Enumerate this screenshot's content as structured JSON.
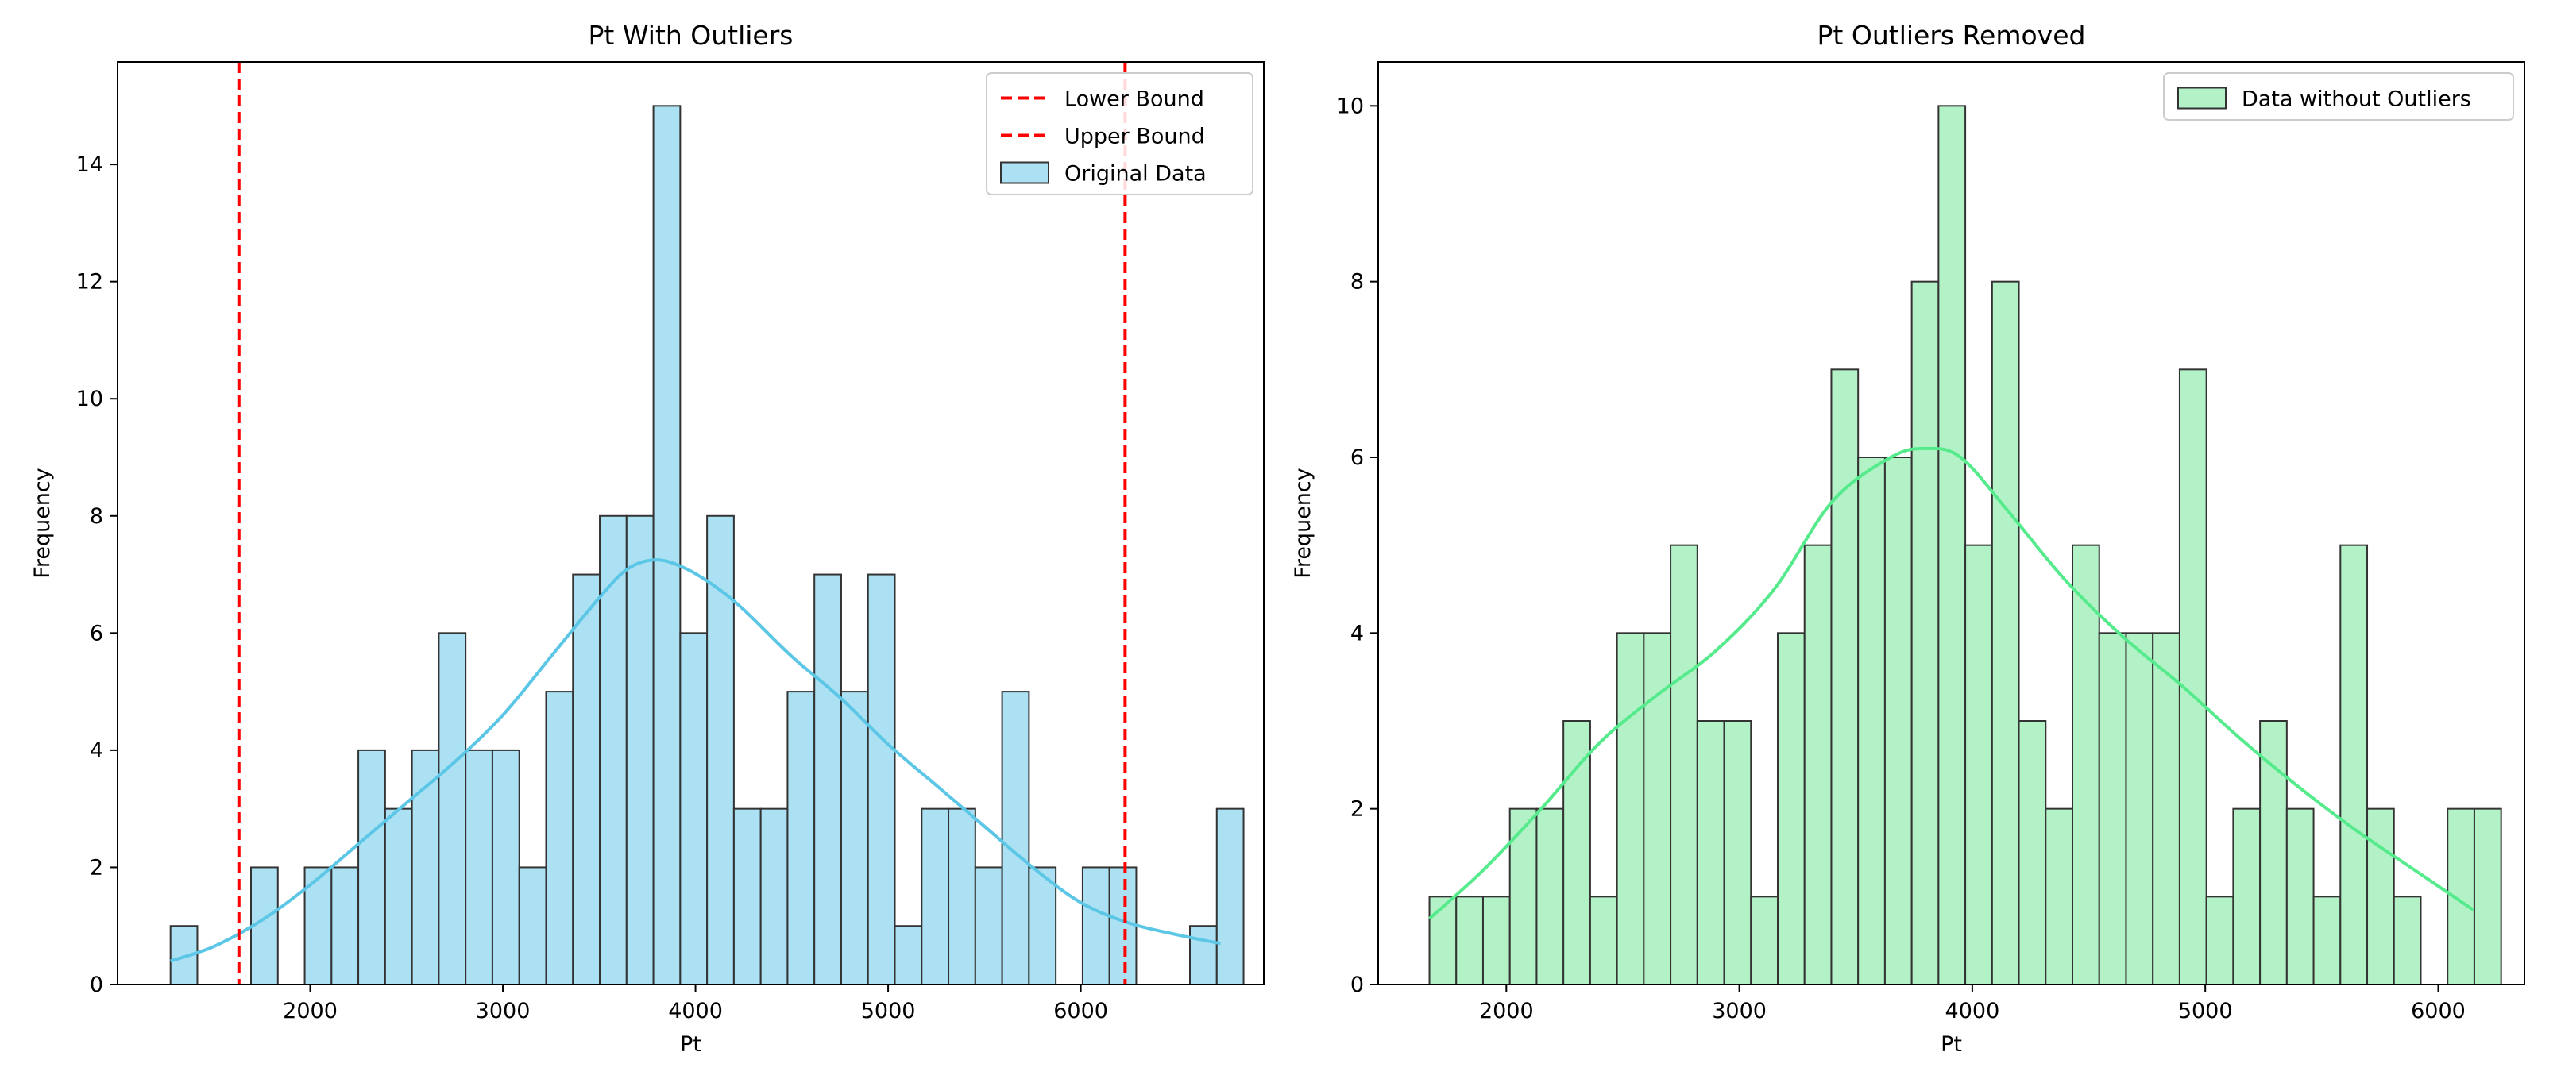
{
  "chart_data": [
    {
      "type": "bar",
      "title": "Pt With Outliers",
      "xlabel": "Pt",
      "ylabel": "Frequency",
      "xlim": [
        1000,
        6950
      ],
      "ylim": [
        0,
        15.75
      ],
      "xticks": [
        2000,
        3000,
        4000,
        5000,
        6000
      ],
      "yticks": [
        0,
        2,
        4,
        6,
        8,
        10,
        12,
        14
      ],
      "bin_start": 1275,
      "bin_width": 139.25,
      "counts": [
        1,
        0,
        0,
        2,
        0,
        2,
        2,
        4,
        3,
        4,
        6,
        4,
        4,
        2,
        5,
        7,
        8,
        8,
        15,
        6,
        8,
        3,
        3,
        5,
        7,
        5,
        7,
        1,
        3,
        3,
        2,
        5,
        2,
        0,
        2,
        2,
        0,
        0,
        1,
        3
      ],
      "bar_fill": "#abe1f2",
      "bar_edge": "#333333",
      "kde": {
        "color": "#5bc6e6",
        "x": [
          1275,
          1500,
          1750,
          2000,
          2250,
          2500,
          2750,
          3000,
          3250,
          3500,
          3650,
          3800,
          3950,
          4100,
          4250,
          4500,
          4750,
          5000,
          5250,
          5500,
          5750,
          6000,
          6250,
          6500,
          6725
        ],
        "y": [
          0.4,
          0.65,
          1.1,
          1.7,
          2.4,
          3.1,
          3.8,
          4.6,
          5.6,
          6.6,
          7.1,
          7.25,
          7.1,
          6.8,
          6.4,
          5.6,
          4.9,
          4.1,
          3.4,
          2.7,
          2.0,
          1.4,
          1.05,
          0.85,
          0.7
        ]
      },
      "vlines": [
        {
          "name": "Lower Bound",
          "x": 1630,
          "color": "#ff0000"
        },
        {
          "name": "Upper Bound",
          "x": 6230,
          "color": "#ff0000"
        }
      ],
      "legend": {
        "position": "top-right",
        "entries": [
          "Lower Bound",
          "Upper Bound",
          "Original Data"
        ]
      }
    },
    {
      "type": "bar",
      "title": "Pt Outliers Removed",
      "xlabel": "Pt",
      "ylabel": "Frequency",
      "xlim": [
        1450,
        6370
      ],
      "ylim": [
        0,
        10.5
      ],
      "xticks": [
        2000,
        3000,
        4000,
        5000,
        6000
      ],
      "yticks": [
        0,
        2,
        4,
        6,
        8,
        10
      ],
      "bin_start": 1670,
      "bin_width": 115,
      "counts": [
        1,
        1,
        1,
        2,
        2,
        3,
        1,
        4,
        4,
        5,
        3,
        3,
        1,
        4,
        5,
        7,
        6,
        6,
        8,
        10,
        5,
        8,
        3,
        2,
        5,
        4,
        4,
        4,
        7,
        1,
        2,
        3,
        2,
        1,
        5,
        2,
        1,
        0,
        2,
        2
      ],
      "bar_fill": "#b3f2c6",
      "bar_edge": "#333333",
      "kde": {
        "color": "#55eb8c",
        "x": [
          1670,
          1900,
          2150,
          2400,
          2650,
          2900,
          3150,
          3400,
          3650,
          3800,
          3950,
          4150,
          4400,
          4650,
          4900,
          5150,
          5400,
          5650,
          5900,
          6150
        ],
        "y": [
          0.75,
          1.3,
          2.0,
          2.75,
          3.3,
          3.8,
          4.5,
          5.5,
          6.0,
          6.1,
          6.0,
          5.4,
          4.6,
          3.95,
          3.4,
          2.8,
          2.25,
          1.75,
          1.3,
          0.85
        ]
      },
      "legend": {
        "position": "top-right",
        "entries": [
          "Data without Outliers"
        ]
      }
    }
  ]
}
